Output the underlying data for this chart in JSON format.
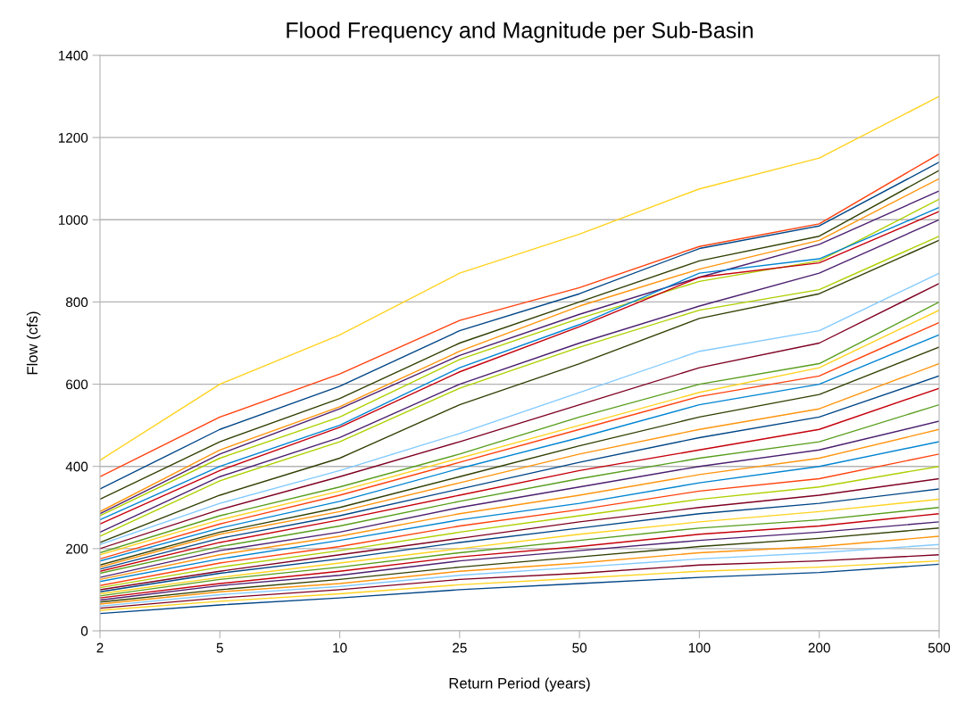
{
  "chart_data": {
    "type": "line",
    "title": "Flood Frequency and Magnitude per Sub-Basin",
    "xlabel": "Return Period (years)",
    "ylabel": "Flow (cfs)",
    "categories": [
      "2",
      "5",
      "10",
      "25",
      "50",
      "100",
      "200",
      "500"
    ],
    "ylim": [
      0,
      1400
    ],
    "yticks": [
      0,
      200,
      400,
      600,
      800,
      1000,
      1200,
      1400
    ],
    "grid": "y",
    "legend": false,
    "marker": "none",
    "line_style": "solid",
    "series": [
      {
        "color": "#ffd320",
        "values": [
          415,
          600,
          720,
          870,
          965,
          1075,
          1150,
          1300
        ]
      },
      {
        "color": "#ff420e",
        "values": [
          375,
          520,
          625,
          755,
          835,
          935,
          990,
          1160
        ]
      },
      {
        "color": "#004586",
        "values": [
          345,
          490,
          595,
          730,
          820,
          930,
          985,
          1140
        ]
      },
      {
        "color": "#314004",
        "values": [
          320,
          460,
          565,
          700,
          800,
          900,
          960,
          1120
        ]
      },
      {
        "color": "#ff950e",
        "values": [
          290,
          440,
          545,
          680,
          790,
          880,
          950,
          1100
        ]
      },
      {
        "color": "#4b1f6f",
        "values": [
          285,
          430,
          540,
          670,
          770,
          860,
          940,
          1070
        ]
      },
      {
        "color": "#aecf00",
        "values": [
          280,
          420,
          520,
          660,
          760,
          850,
          900,
          1050
        ]
      },
      {
        "color": "#0084d1",
        "values": [
          270,
          400,
          500,
          640,
          745,
          870,
          905,
          1030
        ]
      },
      {
        "color": "#c5000b",
        "values": [
          260,
          390,
          495,
          630,
          740,
          860,
          895,
          1020
        ]
      },
      {
        "color": "#4b1f6f",
        "values": [
          240,
          375,
          470,
          600,
          700,
          790,
          870,
          1000
        ]
      },
      {
        "color": "#aecf00",
        "values": [
          230,
          365,
          460,
          590,
          690,
          780,
          830,
          960
        ]
      },
      {
        "color": "#314004",
        "values": [
          215,
          330,
          420,
          550,
          650,
          760,
          820,
          950
        ]
      },
      {
        "color": "#83caff",
        "values": [
          210,
          310,
          390,
          480,
          580,
          680,
          730,
          870
        ]
      },
      {
        "color": "#7e0021",
        "values": [
          200,
          295,
          375,
          460,
          550,
          640,
          700,
          845
        ]
      },
      {
        "color": "#579d1c",
        "values": [
          190,
          280,
          350,
          430,
          520,
          600,
          650,
          800
        ]
      },
      {
        "color": "#ffd320",
        "values": [
          185,
          270,
          340,
          420,
          500,
          580,
          640,
          780
        ]
      },
      {
        "color": "#ff420e",
        "values": [
          175,
          260,
          330,
          410,
          490,
          570,
          620,
          750
        ]
      },
      {
        "color": "#0084d1",
        "values": [
          170,
          250,
          315,
          395,
          470,
          550,
          600,
          720
        ]
      },
      {
        "color": "#314004",
        "values": [
          160,
          240,
          300,
          375,
          450,
          520,
          575,
          690
        ]
      },
      {
        "color": "#ff950e",
        "values": [
          155,
          235,
          290,
          360,
          430,
          490,
          540,
          650
        ]
      },
      {
        "color": "#004586",
        "values": [
          150,
          225,
          280,
          345,
          410,
          470,
          520,
          620
        ]
      },
      {
        "color": "#c5000b",
        "values": [
          145,
          215,
          270,
          330,
          390,
          440,
          490,
          590
        ]
      },
      {
        "color": "#579d1c",
        "values": [
          140,
          205,
          255,
          315,
          370,
          420,
          460,
          550
        ]
      },
      {
        "color": "#4b1f6f",
        "values": [
          130,
          195,
          240,
          300,
          350,
          400,
          440,
          510
        ]
      },
      {
        "color": "#ff950e",
        "values": [
          125,
          185,
          230,
          285,
          330,
          380,
          420,
          490
        ]
      },
      {
        "color": "#0084d1",
        "values": [
          120,
          175,
          220,
          270,
          310,
          360,
          400,
          460
        ]
      },
      {
        "color": "#ff420e",
        "values": [
          110,
          165,
          205,
          255,
          295,
          340,
          370,
          430
        ]
      },
      {
        "color": "#aecf00",
        "values": [
          105,
          155,
          195,
          240,
          280,
          320,
          350,
          400
        ]
      },
      {
        "color": "#7e0021",
        "values": [
          100,
          145,
          185,
          225,
          265,
          300,
          330,
          370
        ]
      },
      {
        "color": "#004586",
        "values": [
          95,
          140,
          175,
          215,
          250,
          285,
          310,
          345
        ]
      },
      {
        "color": "#ffd320",
        "values": [
          90,
          130,
          165,
          200,
          235,
          265,
          290,
          320
        ]
      },
      {
        "color": "#579d1c",
        "values": [
          85,
          125,
          155,
          190,
          220,
          250,
          270,
          300
        ]
      },
      {
        "color": "#c5000b",
        "values": [
          80,
          115,
          145,
          180,
          205,
          235,
          255,
          285
        ]
      },
      {
        "color": "#4b1f6f",
        "values": [
          75,
          110,
          135,
          170,
          195,
          220,
          240,
          265
        ]
      },
      {
        "color": "#314004",
        "values": [
          70,
          100,
          125,
          155,
          180,
          205,
          225,
          250
        ]
      },
      {
        "color": "#ff950e",
        "values": [
          65,
          95,
          115,
          145,
          165,
          190,
          205,
          230
        ]
      },
      {
        "color": "#83caff",
        "values": [
          60,
          88,
          108,
          135,
          155,
          175,
          190,
          210
        ]
      },
      {
        "color": "#7e0021",
        "values": [
          55,
          80,
          100,
          125,
          140,
          160,
          170,
          185
        ]
      },
      {
        "color": "#ffd320",
        "values": [
          50,
          72,
          90,
          112,
          128,
          145,
          155,
          170
        ]
      },
      {
        "color": "#004586",
        "values": [
          42,
          63,
          80,
          100,
          115,
          130,
          142,
          162
        ]
      }
    ]
  }
}
